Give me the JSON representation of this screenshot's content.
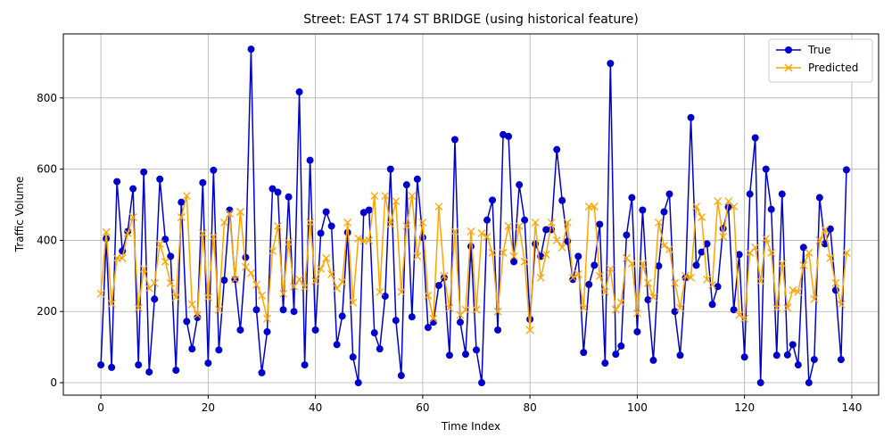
{
  "chart_data": {
    "type": "line",
    "title": "Street: EAST 174 ST BRIDGE (using historical feature)",
    "xlabel": "Time Index",
    "ylabel": "Traffic Volume",
    "xlim": [
      -7,
      145
    ],
    "ylim": [
      -35,
      980
    ],
    "xticks": [
      0,
      20,
      40,
      60,
      80,
      100,
      120,
      140
    ],
    "yticks": [
      0,
      200,
      400,
      600,
      800
    ],
    "grid": true,
    "legend": "top-right",
    "series": [
      {
        "name": "True",
        "color": "#0000cc",
        "marker": "circle",
        "values": [
          50,
          405,
          43,
          565,
          370,
          425,
          545,
          50,
          592,
          30,
          235,
          572,
          403,
          355,
          35,
          507,
          172,
          95,
          183,
          562,
          55,
          597,
          92,
          288,
          485,
          290,
          148,
          352,
          937,
          205,
          28,
          143,
          545,
          535,
          205,
          522,
          200,
          817,
          50,
          625,
          148,
          420,
          480,
          440,
          107,
          187,
          422,
          72,
          0,
          478,
          485,
          140,
          95,
          243,
          600,
          175,
          20,
          556,
          185,
          572,
          408,
          155,
          170,
          273,
          295,
          77,
          683,
          170,
          80,
          383,
          92,
          0,
          457,
          513,
          148,
          697,
          692,
          340,
          556,
          457,
          178,
          390,
          355,
          430,
          430,
          655,
          512,
          397,
          290,
          355,
          85,
          276,
          330,
          445,
          55,
          897,
          80,
          103,
          415,
          520,
          143,
          485,
          233,
          63,
          328,
          480,
          530,
          200,
          77,
          295,
          745,
          330,
          367,
          390,
          220,
          270,
          433,
          493,
          205,
          360,
          72,
          530,
          688,
          0,
          600,
          487,
          77,
          530,
          78,
          107,
          50,
          380,
          0,
          65,
          520,
          390,
          432,
          260,
          65,
          598
        ]
      },
      {
        "name": "Predicted",
        "color": "#ffa500",
        "marker": "x",
        "values": [
          250,
          423,
          222,
          350,
          350,
          420,
          465,
          210,
          320,
          265,
          280,
          390,
          340,
          280,
          240,
          465,
          525,
          220,
          190,
          420,
          240,
          410,
          205,
          450,
          475,
          290,
          480,
          325,
          308,
          275,
          245,
          180,
          370,
          440,
          250,
          395,
          270,
          290,
          268,
          450,
          285,
          320,
          350,
          305,
          265,
          283,
          450,
          225,
          405,
          398,
          400,
          525,
          255,
          525,
          445,
          510,
          255,
          440,
          525,
          355,
          450,
          245,
          180,
          495,
          300,
          210,
          425,
          190,
          205,
          425,
          205,
          420,
          410,
          365,
          200,
          365,
          440,
          355,
          440,
          340,
          148,
          450,
          295,
          360,
          450,
          400,
          380,
          450,
          295,
          305,
          210,
          495,
          495,
          300,
          255,
          320,
          205,
          225,
          350,
          335,
          195,
          335,
          280,
          240,
          450,
          385,
          375,
          280,
          210,
          300,
          295,
          495,
          465,
          290,
          275,
          510,
          410,
          510,
          495,
          190,
          180,
          365,
          380,
          285,
          405,
          365,
          210,
          335,
          210,
          260,
          255,
          330,
          365,
          235,
          400,
          430,
          350,
          280,
          220,
          365
        ]
      }
    ]
  }
}
